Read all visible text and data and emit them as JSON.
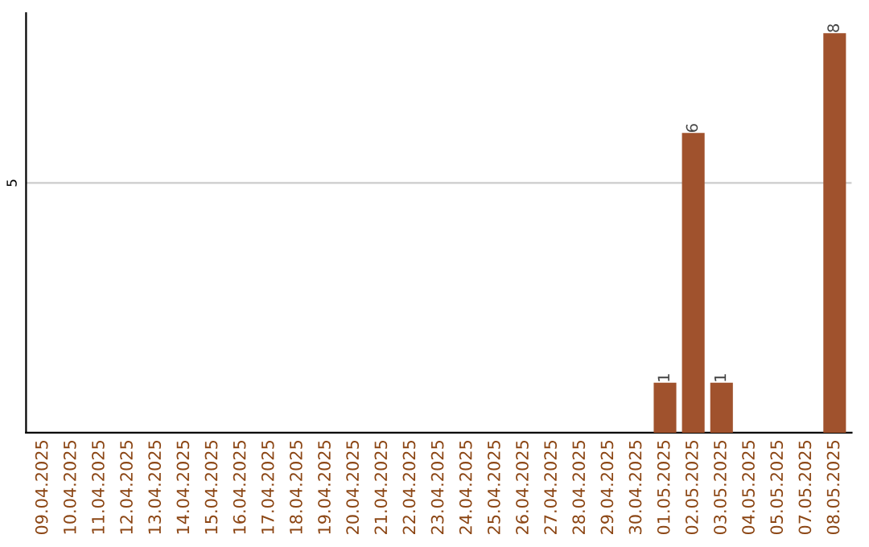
{
  "chart_data": {
    "type": "bar",
    "categories": [
      "09.04.2025",
      "10.04.2025",
      "11.04.2025",
      "12.04.2025",
      "13.04.2025",
      "14.04.2025",
      "15.04.2025",
      "16.04.2025",
      "17.04.2025",
      "18.04.2025",
      "19.04.2025",
      "20.04.2025",
      "21.04.2025",
      "22.04.2025",
      "23.04.2025",
      "24.04.2025",
      "25.04.2025",
      "26.04.2025",
      "27.04.2025",
      "28.04.2025",
      "29.04.2025",
      "30.04.2025",
      "01.05.2025",
      "02.05.2025",
      "03.05.2025",
      "04.05.2025",
      "05.05.2025",
      "07.05.2025",
      "08.05.2025"
    ],
    "values": [
      null,
      null,
      null,
      null,
      null,
      null,
      null,
      null,
      null,
      null,
      null,
      null,
      null,
      null,
      null,
      null,
      null,
      null,
      null,
      null,
      null,
      null,
      1,
      6,
      1,
      null,
      null,
      null,
      8
    ],
    "data_labels": true,
    "color": "#a0522d",
    "ylim": [
      0,
      8.4
    ],
    "yticks": [
      5
    ],
    "grid": "y"
  }
}
